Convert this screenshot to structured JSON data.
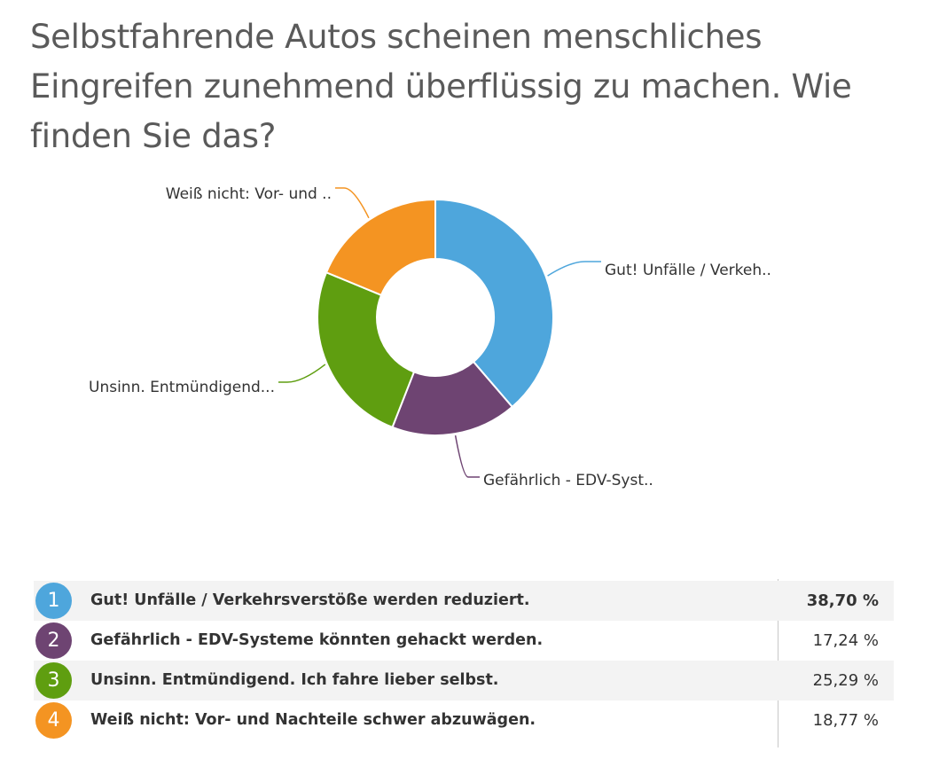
{
  "chart_data": {
    "type": "pie",
    "variant": "donut",
    "title": "Selbstfahrende Autos scheinen menschliches Eingreifen zunehmend überflüssig zu machen. Wie finden Sie das?",
    "slices": [
      {
        "index": "1",
        "label": "Gut! Unfälle / Verkehrsverstöße werden reduziert.",
        "short_label": "Gut! Unfälle / Verkeh..",
        "value": 38.7,
        "value_text": "38,70 %",
        "color": "#4ea6dc",
        "highlight": true
      },
      {
        "index": "2",
        "label": "Gefährlich - EDV-Systeme könnten gehackt werden.",
        "short_label": "Gefährlich - EDV-Syst..",
        "value": 17.24,
        "value_text": "17,24 %",
        "color": "#6e4472",
        "highlight": false
      },
      {
        "index": "3",
        "label": "Unsinn. Entmündigend. Ich fahre lieber selbst.",
        "short_label": "Unsinn. Entmündigend...",
        "value": 25.29,
        "value_text": "25,29 %",
        "color": "#5f9e10",
        "highlight": false
      },
      {
        "index": "4",
        "label": "Weiß nicht: Vor- und Nachteile schwer abzuwägen.",
        "short_label": "Weiß nicht: Vor- und ..",
        "value": 18.77,
        "value_text": "18,77 %",
        "color": "#f49422",
        "highlight": false
      }
    ]
  }
}
